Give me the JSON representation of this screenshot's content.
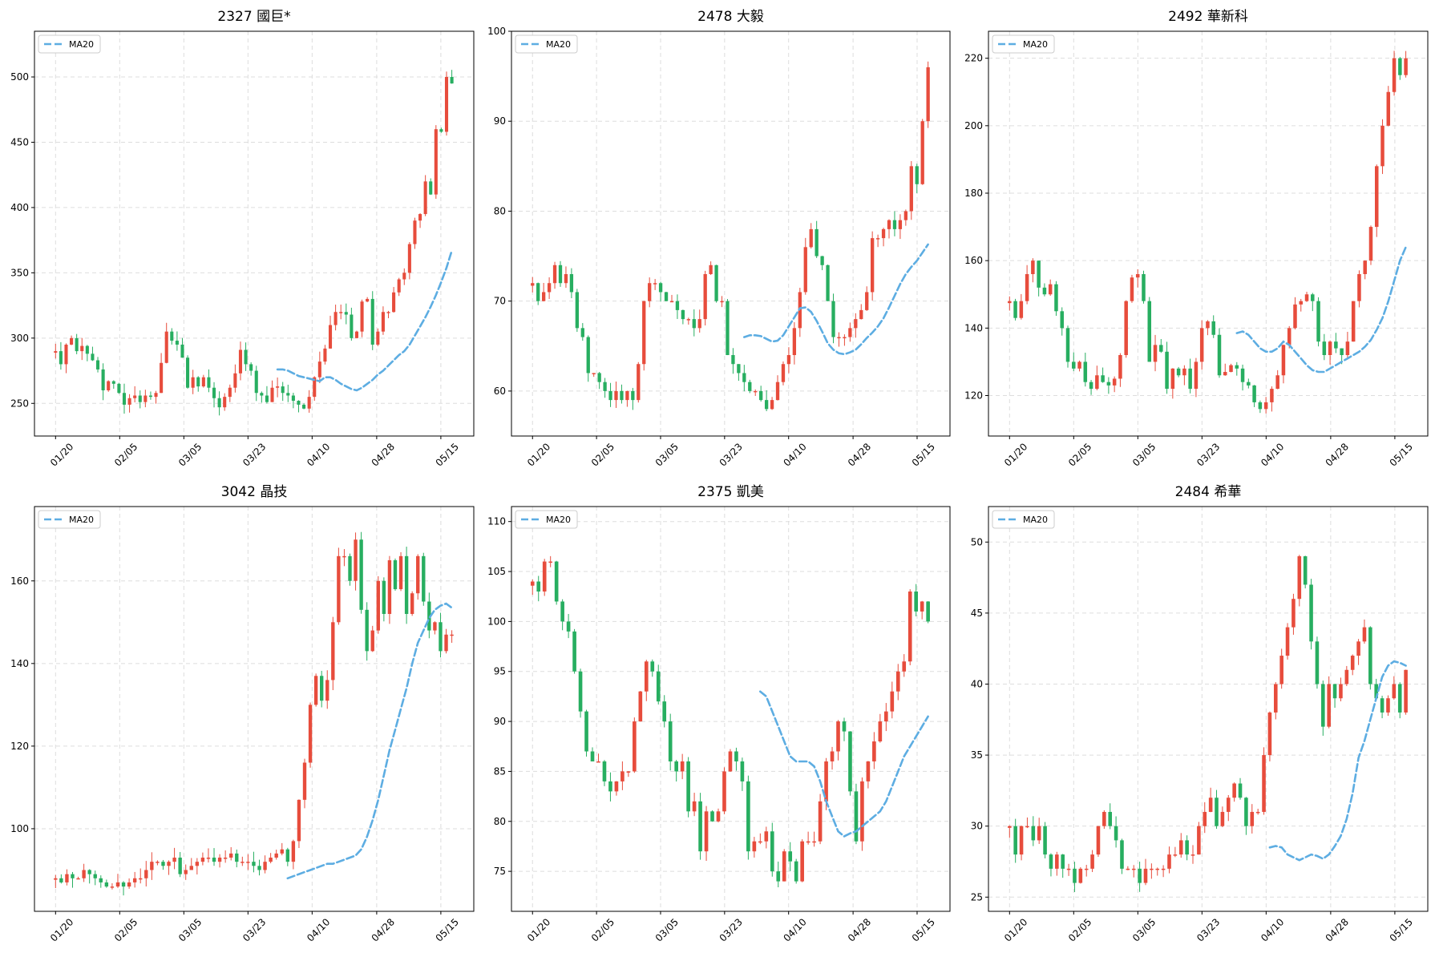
{
  "figure": {
    "background": "#ffffff",
    "up_color": "#e74c3c",
    "down_color": "#27ae60",
    "ma_color": "#5dade2"
  },
  "x_ticks": [
    "01/20",
    "02/05",
    "03/05",
    "03/23",
    "04/10",
    "04/28",
    "05/15"
  ],
  "chart_data": [
    {
      "type": "candlestick",
      "title": "2327 國巨*",
      "legend": {
        "label": "MA20",
        "position": "top-left"
      },
      "ylim": [
        225,
        535
      ],
      "yticks": [
        250,
        300,
        350,
        400,
        450,
        500
      ],
      "grid": true,
      "close": [
        290,
        280,
        295,
        300,
        290,
        294,
        288,
        283,
        276,
        260,
        267,
        265,
        258,
        249,
        254,
        256,
        251,
        256,
        255,
        258,
        281,
        305,
        298,
        295,
        285,
        262,
        270,
        263,
        270,
        262,
        254,
        247,
        255,
        262,
        273,
        291,
        280,
        275,
        258,
        256,
        251,
        262,
        263,
        258,
        256,
        252,
        249,
        246,
        255,
        270,
        282,
        292,
        310,
        320,
        320,
        318,
        300,
        305,
        328,
        330,
        295,
        305,
        320,
        320,
        335,
        345,
        350,
        372,
        390,
        395,
        420,
        410,
        460,
        458,
        500,
        495
      ],
      "ma20": [
        276,
        276,
        275,
        273,
        271,
        270,
        269,
        268,
        267,
        270,
        270,
        268,
        265,
        263,
        261,
        260,
        262,
        265,
        268,
        272,
        275,
        279,
        283,
        287,
        290,
        295,
        302,
        309,
        316,
        324,
        333,
        343,
        354,
        367
      ]
    },
    {
      "type": "candlestick",
      "title": "2478 大毅",
      "legend": {
        "label": "MA20",
        "position": "top-left"
      },
      "ylim": [
        55,
        100
      ],
      "yticks": [
        60,
        70,
        80,
        90,
        100
      ],
      "grid": true,
      "close": [
        72,
        70,
        71,
        72,
        74,
        72,
        73,
        71,
        67,
        66,
        62,
        62,
        61,
        60,
        59,
        60,
        59,
        60,
        59,
        63,
        70,
        72,
        72,
        71,
        70,
        70,
        69,
        68,
        68,
        67,
        68,
        73,
        74,
        70,
        70,
        64,
        63,
        62,
        61,
        60,
        60,
        59,
        58,
        59,
        61,
        63,
        64,
        67,
        71,
        76,
        78,
        75,
        74,
        70,
        66,
        66,
        66,
        67,
        68,
        69,
        71,
        77,
        77,
        78,
        79,
        78,
        79,
        80,
        85,
        83,
        90,
        96
      ],
      "ma20": [
        66,
        66.2,
        66.2,
        66.1,
        65.8,
        65.5,
        65.6,
        66.2,
        67.2,
        68.2,
        69.2,
        69.3,
        68.8,
        67.8,
        66.6,
        65.3,
        64.6,
        64.2,
        64.1,
        64.3,
        64.6,
        65.2,
        65.9,
        66.5,
        67.2,
        68.1,
        69.3,
        70.6,
        71.9,
        73.0,
        73.8,
        74.5,
        75.4,
        76.3
      ]
    },
    {
      "type": "candlestick",
      "title": "2492 華新科",
      "legend": {
        "label": "MA20",
        "position": "top-left"
      },
      "ylim": [
        108,
        228
      ],
      "yticks": [
        120,
        140,
        160,
        180,
        200,
        220
      ],
      "grid": true,
      "close": [
        148,
        143,
        148,
        156,
        160,
        152,
        150,
        153,
        145,
        140,
        130,
        128,
        130,
        124,
        122,
        126,
        124,
        123,
        125,
        132,
        148,
        155,
        156,
        148,
        130,
        135,
        133,
        122,
        128,
        126,
        128,
        122,
        130,
        140,
        142,
        138,
        126,
        127,
        129,
        128,
        124,
        123,
        118,
        116,
        118,
        122,
        126,
        135,
        140,
        147,
        148,
        150,
        148,
        136,
        132,
        136,
        134,
        132,
        136,
        148,
        156,
        160,
        170,
        188,
        200,
        210,
        220,
        215,
        220
      ],
      "ma20": [
        138.5,
        139,
        138,
        136,
        134,
        133,
        133,
        134,
        136,
        135,
        133,
        131,
        129,
        127.5,
        127,
        127,
        128,
        129,
        130,
        131,
        132,
        133,
        134.5,
        136.5,
        139.5,
        143,
        148,
        154,
        160,
        164
      ]
    },
    {
      "type": "candlestick",
      "title": "3042 晶技",
      "legend": {
        "label": "MA20",
        "position": "top-left"
      },
      "ylim": [
        80,
        178
      ],
      "yticks": [
        100,
        120,
        140,
        160
      ],
      "grid": true,
      "close": [
        88,
        87,
        89,
        88,
        88,
        90,
        89,
        88,
        87,
        86,
        86,
        87,
        86,
        87,
        88,
        88,
        90,
        92,
        92,
        91,
        92,
        93,
        89,
        90,
        91,
        92,
        93,
        93,
        92,
        93,
        93,
        94,
        92,
        92,
        92,
        91,
        90,
        92,
        93,
        94,
        95,
        92,
        97,
        107,
        116,
        130,
        137,
        131,
        136,
        150,
        166,
        166,
        160,
        170,
        153,
        143,
        148,
        160,
        152,
        165,
        158,
        166,
        152,
        157,
        166,
        155,
        148,
        150,
        143,
        147,
        147
      ],
      "ma20": [
        88,
        88.5,
        89,
        89.5,
        90,
        90.5,
        91,
        91.5,
        91.5,
        92,
        92.5,
        93,
        93.5,
        95,
        98,
        102,
        107,
        113,
        119,
        124,
        129,
        134,
        140,
        145,
        148,
        151,
        153,
        154,
        154.5,
        153.5
      ]
    },
    {
      "type": "candlestick",
      "title": "2375 凱美",
      "legend": {
        "label": "MA20",
        "position": "top-left"
      },
      "ylim": [
        71,
        111.5
      ],
      "yticks": [
        75,
        80,
        85,
        90,
        95,
        100,
        105,
        110
      ],
      "grid": true,
      "close": [
        104,
        103,
        106,
        106,
        102,
        100,
        99,
        95,
        91,
        87,
        86,
        86,
        84,
        83,
        84,
        85,
        85,
        90,
        93,
        96,
        95,
        92,
        90,
        86,
        85,
        86,
        81,
        82,
        77,
        81,
        80,
        81,
        85,
        87,
        86,
        84,
        77,
        78,
        78,
        79,
        75,
        74,
        77,
        76,
        74,
        78,
        78,
        78,
        82,
        86,
        87,
        90,
        89,
        83,
        78,
        84,
        86,
        88,
        90,
        91,
        93,
        95,
        96,
        103,
        101,
        102,
        100
      ],
      "ma20": [
        93,
        92.5,
        91,
        89.5,
        88,
        86.5,
        86,
        86,
        86,
        85.5,
        84,
        82,
        80.5,
        79,
        78.5,
        78.8,
        79,
        79.5,
        80,
        80.5,
        81,
        82,
        83.5,
        85,
        86.5,
        87.5,
        88.5,
        89.5,
        90.5
      ]
    },
    {
      "type": "candlestick",
      "title": "2484 希華",
      "legend": {
        "label": "MA20",
        "position": "top-left"
      },
      "ylim": [
        24,
        52.5
      ],
      "yticks": [
        25,
        30,
        35,
        40,
        45,
        50
      ],
      "grid": true,
      "close": [
        30,
        28,
        30,
        30,
        29,
        30,
        28,
        27,
        28,
        27,
        27,
        26,
        27,
        27,
        28,
        30,
        31,
        30,
        29,
        27,
        27,
        27,
        26,
        27,
        27,
        27,
        27,
        28,
        28,
        29,
        28,
        28,
        30,
        31,
        32,
        30,
        31,
        32,
        33,
        32,
        30,
        31,
        31,
        35,
        38,
        40,
        42,
        44,
        46,
        49,
        47,
        43,
        40,
        37,
        40,
        39,
        40,
        41,
        42,
        43,
        44,
        40,
        39,
        38,
        39,
        40,
        38,
        41
      ],
      "ma20": [
        28.5,
        28.6,
        28.5,
        28.0,
        27.8,
        27.6,
        27.8,
        28.0,
        27.9,
        27.7,
        28.0,
        28.6,
        29.3,
        30.5,
        32.3,
        34.8,
        36.0,
        37.5,
        39.0,
        40.5,
        41.3,
        41.6,
        41.5,
        41.3
      ]
    }
  ]
}
